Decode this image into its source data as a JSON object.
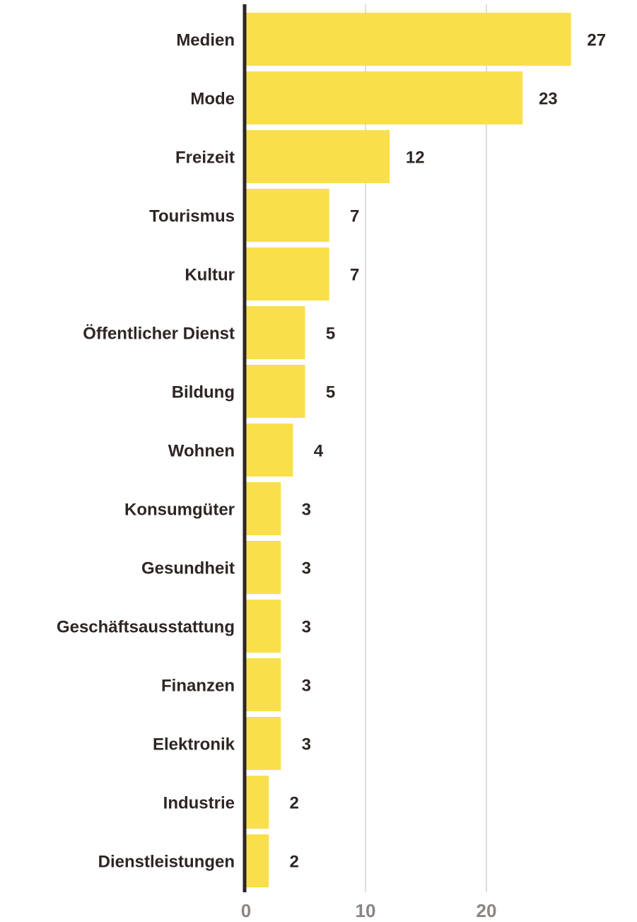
{
  "chart_data": {
    "type": "bar",
    "orientation": "horizontal",
    "categories": [
      "Medien",
      "Mode",
      "Freizeit",
      "Tourismus",
      "Kultur",
      "Öffentlicher Dienst",
      "Bildung",
      "Wohnen",
      "Konsumgüter",
      "Gesundheit",
      "Geschäftsausstattung",
      "Finanzen",
      "Elektronik",
      "Industrie",
      "Dienstleistungen"
    ],
    "values": [
      27,
      23,
      12,
      7,
      7,
      5,
      5,
      4,
      3,
      3,
      3,
      3,
      3,
      2,
      2
    ],
    "data_labels": [
      "27",
      "23",
      "12",
      "7",
      "7",
      "5",
      "5",
      "4",
      "3",
      "3",
      "3",
      "3",
      "3",
      "2",
      "2"
    ],
    "x_ticks": [
      0,
      10,
      20
    ],
    "x_tick_labels": [
      "0",
      "10",
      "20"
    ],
    "xlim": [
      0,
      30
    ],
    "title": "",
    "xlabel": "",
    "ylabel": "",
    "grid": "vertical",
    "legend": "none",
    "colors": {
      "bar": "#f9e04b",
      "text": "#2e2624",
      "tick_text": "#8c8582",
      "grid": "#dddddd",
      "axis": "#2e2624"
    }
  }
}
